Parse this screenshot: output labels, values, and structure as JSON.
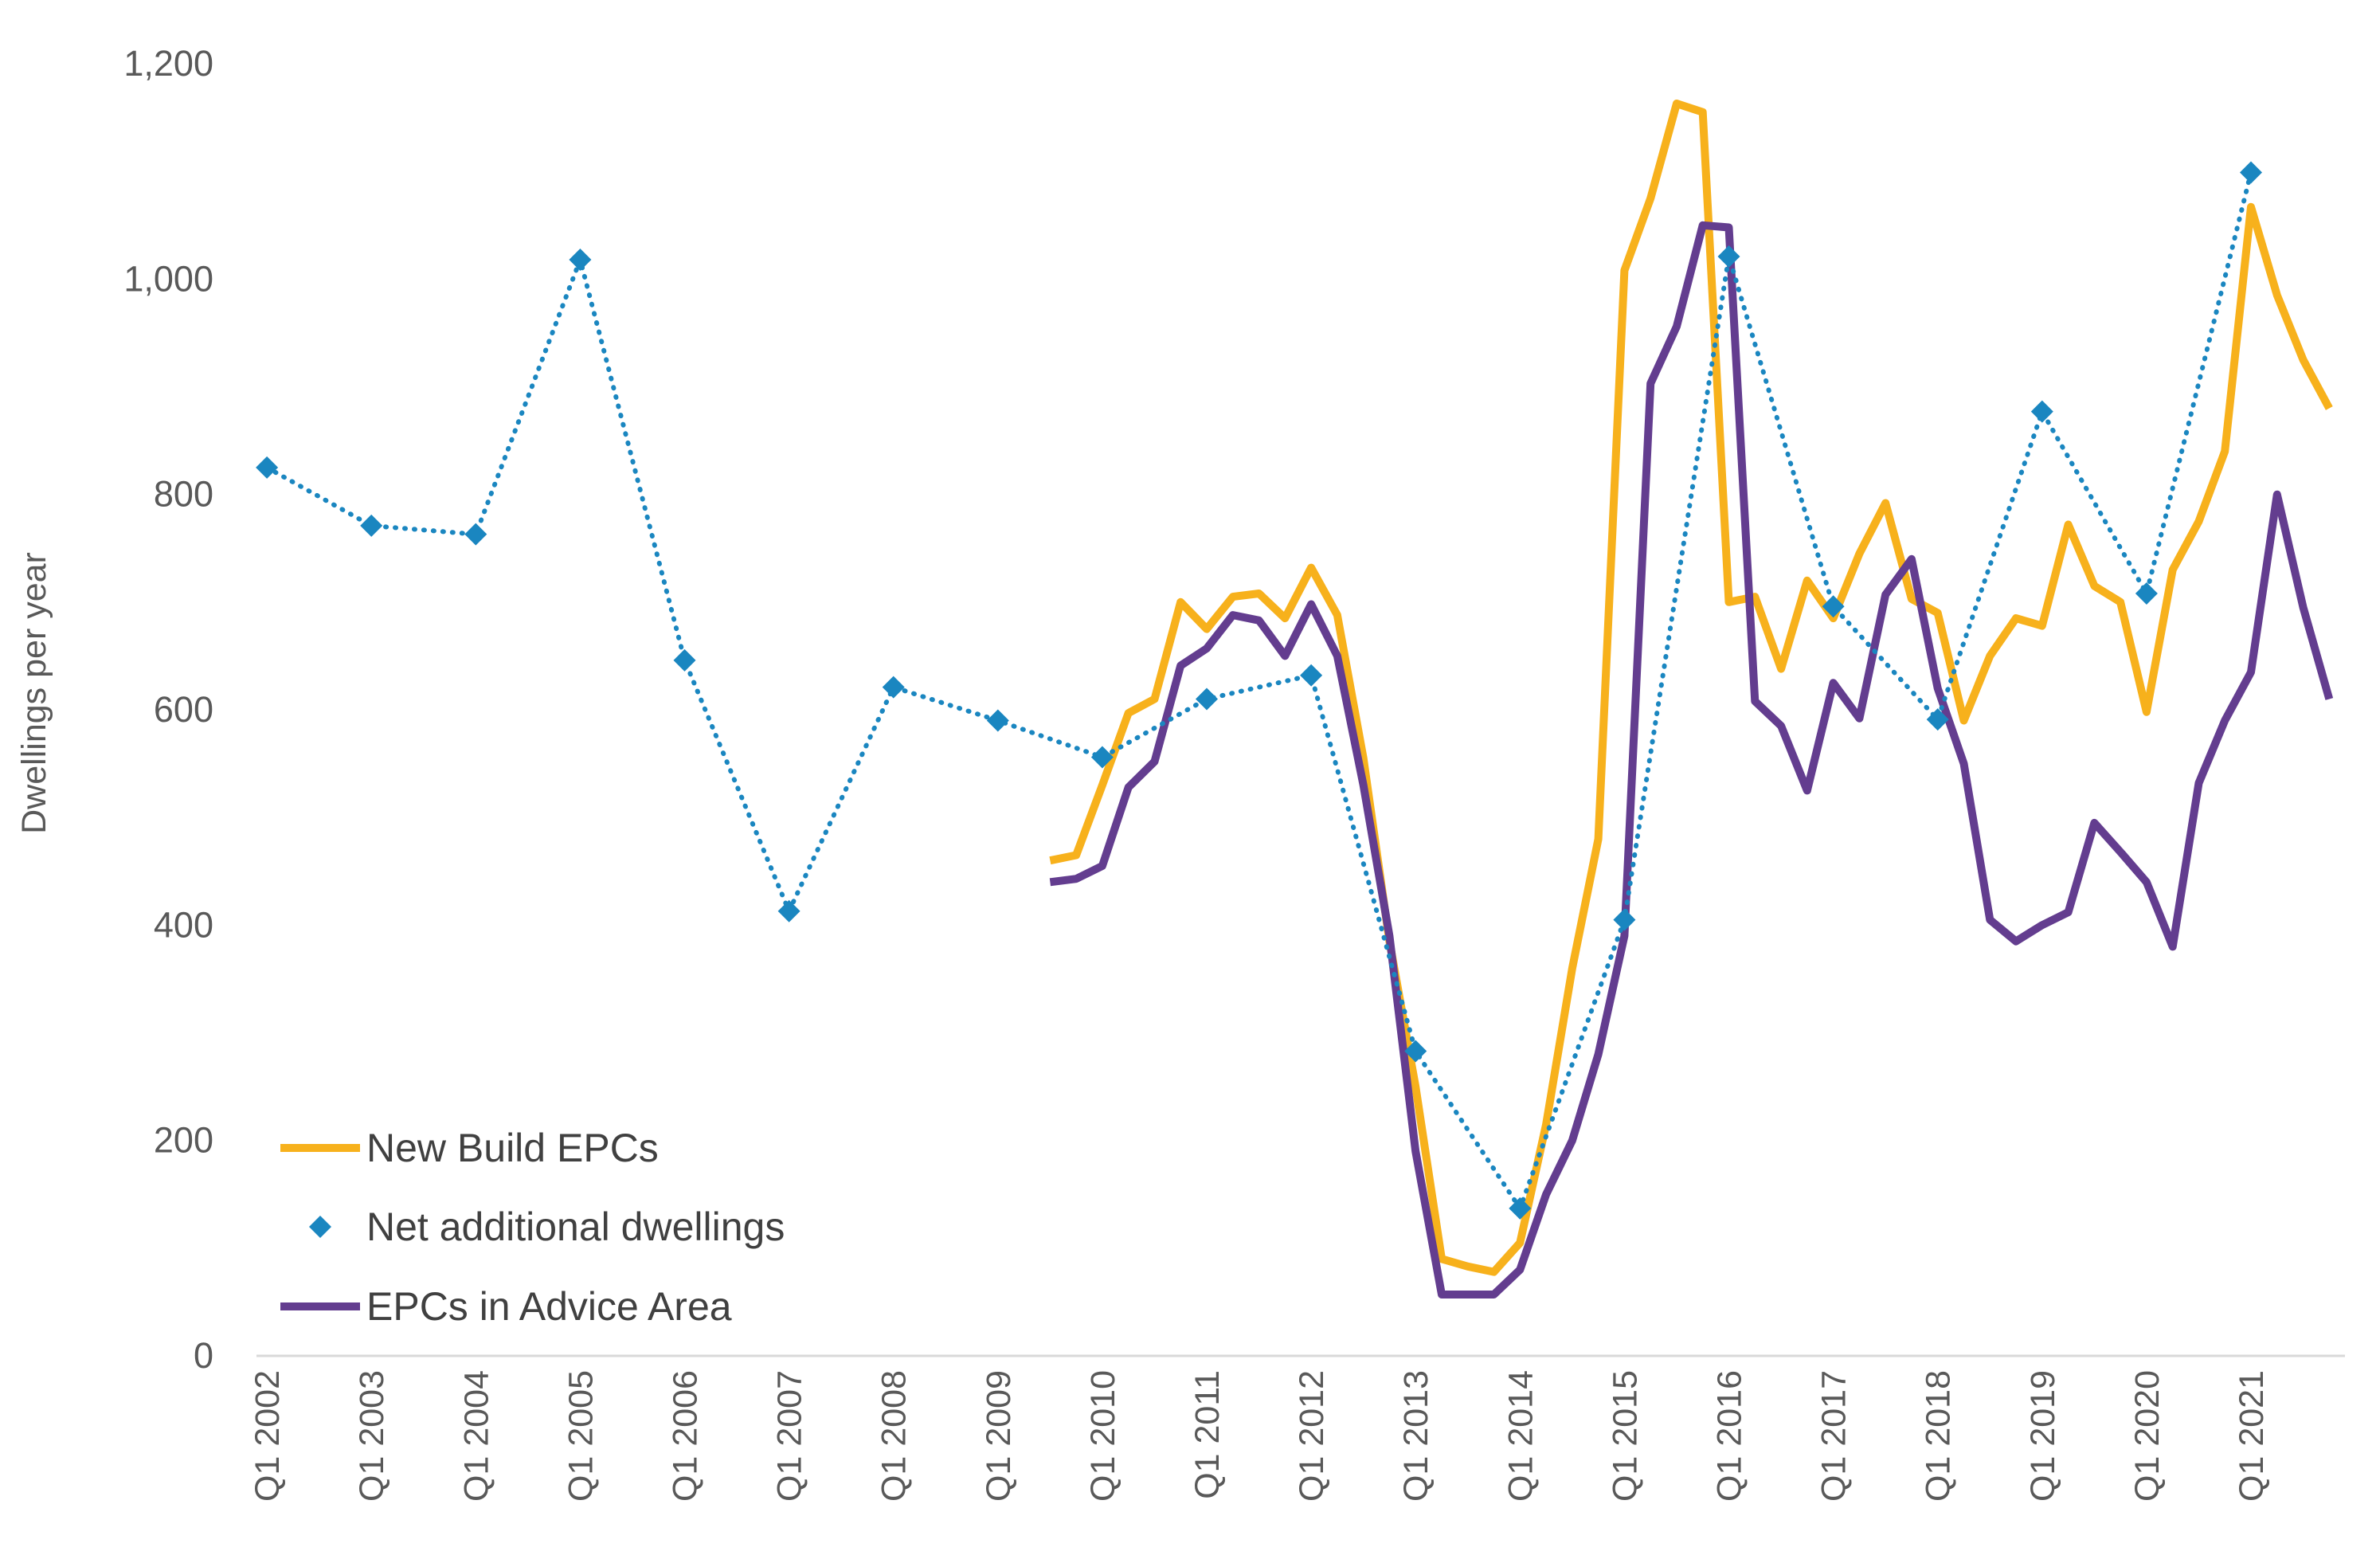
{
  "chart_data": {
    "type": "line",
    "ylabel": "Dwellings per year",
    "xlabel": "",
    "ylim": [
      0,
      1200
    ],
    "yticks": [
      "0",
      "200",
      "400",
      "600",
      "800",
      "1,000",
      "1,200"
    ],
    "ytick_values": [
      0,
      200,
      400,
      600,
      800,
      1000,
      1200
    ],
    "xticks": [
      "Q1 2002",
      "Q1 2003",
      "Q1 2004",
      "Q1 2005",
      "Q1 2006",
      "Q1 2007",
      "Q1 2008",
      "Q1 2009",
      "Q1 2010",
      "Q1 2011",
      "Q1 2012",
      "Q1 2013",
      "Q1 2014",
      "Q1 2015",
      "Q1 2016",
      "Q1 2017",
      "Q1 2018",
      "Q1 2019",
      "Q1 2020",
      "Q1 2021"
    ],
    "xtick_years": [
      2002,
      2003,
      2004,
      2005,
      2006,
      2007,
      2008,
      2009,
      2010,
      2011,
      2012,
      2013,
      2014,
      2015,
      2016,
      2017,
      2018,
      2019,
      2020,
      2021
    ],
    "x_range": [
      2001.9,
      2021.9
    ],
    "grid": false,
    "legend": "bottom-left",
    "series": [
      {
        "name": "New Build EPCs",
        "style": "line",
        "color": "#F7B11C",
        "x": [
          2009.5,
          2009.75,
          2010.0,
          2010.25,
          2010.5,
          2010.75,
          2011.0,
          2011.25,
          2011.5,
          2011.75,
          2012.0,
          2012.25,
          2012.5,
          2012.75,
          2013.0,
          2013.25,
          2013.5,
          2013.75,
          2014.0,
          2014.25,
          2014.5,
          2014.75,
          2015.0,
          2015.25,
          2015.5,
          2015.75,
          2016.0,
          2016.25,
          2016.5,
          2016.75,
          2017.0,
          2017.25,
          2017.5,
          2017.75,
          2018.0,
          2018.25,
          2018.5,
          2018.75,
          2019.0,
          2019.25,
          2019.5,
          2019.75,
          2020.0,
          2020.25,
          2020.5,
          2020.75,
          2021.0,
          2021.25,
          2021.5,
          2021.75
        ],
        "values": [
          460,
          465,
          530,
          597,
          610,
          700,
          675,
          705,
          708,
          685,
          732,
          688,
          555,
          385,
          250,
          90,
          83,
          78,
          105,
          215,
          360,
          480,
          1008,
          1075,
          1163,
          1155,
          700,
          705,
          638,
          720,
          685,
          745,
          792,
          703,
          690,
          590,
          650,
          685,
          678,
          772,
          715,
          700,
          598,
          730,
          775,
          840,
          1067,
          985,
          925,
          880
        ]
      },
      {
        "name": "Net additional dwellings",
        "style": "dotted-markers",
        "color": "#1A86C0",
        "x": [
          2002,
          2003,
          2004,
          2005,
          2006,
          2007,
          2008,
          2009,
          2010,
          2011,
          2012,
          2013,
          2014,
          2015,
          2016,
          2017,
          2018,
          2019,
          2020,
          2021
        ],
        "values": [
          825,
          771,
          763,
          1018,
          646,
          413,
          621,
          590,
          556,
          610,
          632,
          283,
          137,
          405,
          1021,
          696,
          591,
          877,
          708,
          1099
        ]
      },
      {
        "name": "EPCs in Advice Area",
        "style": "line",
        "color": "#633D8F",
        "x": [
          2009.5,
          2009.75,
          2010.0,
          2010.25,
          2010.5,
          2010.75,
          2011.0,
          2011.25,
          2011.5,
          2011.75,
          2012.0,
          2012.25,
          2012.5,
          2012.75,
          2013.0,
          2013.25,
          2013.5,
          2013.75,
          2014.0,
          2014.25,
          2014.5,
          2014.75,
          2015.0,
          2015.25,
          2015.5,
          2015.75,
          2016.0,
          2016.25,
          2016.5,
          2016.75,
          2017.0,
          2017.25,
          2017.5,
          2017.75,
          2018.0,
          2018.25,
          2018.5,
          2018.75,
          2019.0,
          2019.25,
          2019.5,
          2019.75,
          2020.0,
          2020.25,
          2020.5,
          2020.75,
          2021.0,
          2021.25,
          2021.5,
          2021.75
        ],
        "values": [
          440,
          443,
          455,
          528,
          552,
          641,
          657,
          688,
          683,
          650,
          698,
          650,
          530,
          390,
          190,
          57,
          57,
          57,
          80,
          150,
          200,
          280,
          390,
          903,
          956,
          1050,
          1048,
          608,
          585,
          525,
          625,
          592,
          707,
          740,
          620,
          550,
          405,
          385,
          400,
          412,
          495,
          468,
          440,
          380,
          532,
          590,
          635,
          800,
          695,
          610
        ]
      }
    ]
  }
}
